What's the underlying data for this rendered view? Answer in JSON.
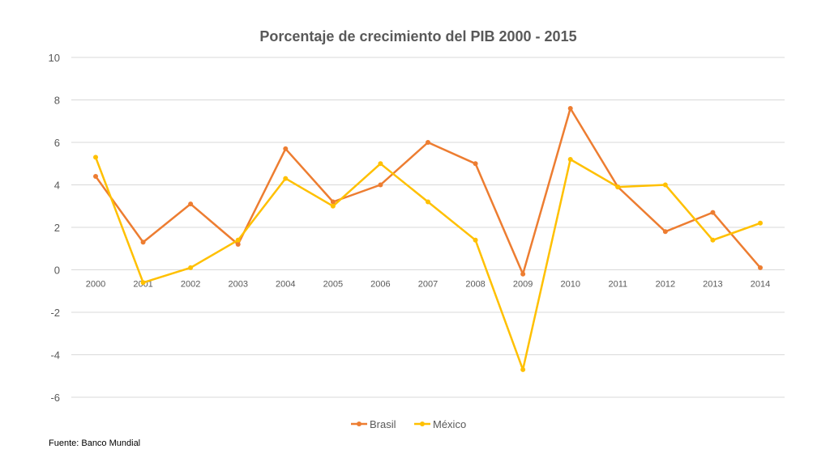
{
  "chart_data": {
    "type": "line",
    "title": "Porcentaje de crecimiento del PIB 2000 - 2015",
    "categories": [
      "2000",
      "2001",
      "2002",
      "2003",
      "2004",
      "2005",
      "2006",
      "2007",
      "2008",
      "2009",
      "2010",
      "2011",
      "2012",
      "2013",
      "2014"
    ],
    "series": [
      {
        "name": "Brasil",
        "color": "#ED7D31",
        "values": [
          4.4,
          1.3,
          3.1,
          1.2,
          5.7,
          3.2,
          4.0,
          6.0,
          5.0,
          -0.2,
          7.6,
          3.9,
          1.8,
          2.7,
          0.1
        ]
      },
      {
        "name": "México",
        "color": "#FFC000",
        "values": [
          5.3,
          -0.6,
          0.1,
          1.4,
          4.3,
          3.0,
          5.0,
          3.2,
          1.4,
          -4.7,
          5.2,
          3.9,
          4.0,
          1.4,
          2.2
        ]
      }
    ],
    "ylim": [
      -6,
      10
    ],
    "yticks": [
      10,
      8,
      6,
      4,
      2,
      0,
      -2,
      -4,
      -6
    ],
    "grid": true,
    "legend_position": "bottom"
  },
  "source_note": "Fuente: Banco Mundial"
}
